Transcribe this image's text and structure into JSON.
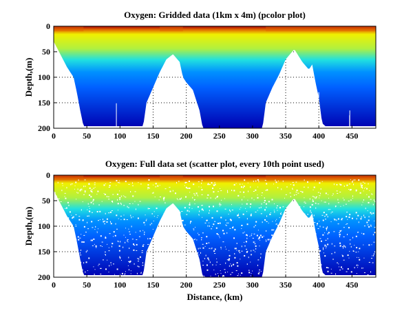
{
  "chart_data": [
    {
      "type": "heatmap",
      "title": "Oxygen: Gridded data (1km x 4m) (pcolor plot)",
      "xlabel": "",
      "ylabel": "Depth,(m)",
      "xlim": [
        0,
        486
      ],
      "ylim": [
        200,
        0
      ],
      "y_reversed": true,
      "xticks": [
        "0",
        "50",
        "100",
        "150",
        "200",
        "250",
        "300",
        "350",
        "400",
        "450"
      ],
      "yticks": [
        "0",
        "50",
        "100",
        "150",
        "200"
      ],
      "grid": true,
      "colormap": "jet",
      "data_bottom_profile": {
        "distance_km": [
          0,
          10,
          20,
          30,
          35,
          40,
          45,
          135,
          140,
          150,
          160,
          170,
          180,
          190,
          195,
          200,
          210,
          220,
          225,
          315,
          320,
          330,
          340,
          350,
          363,
          375,
          385,
          390,
          395,
          400,
          405,
          410,
          486
        ],
        "max_depth_m": [
          30,
          55,
          80,
          100,
          130,
          165,
          196,
          196,
          150,
          120,
          90,
          65,
          55,
          70,
          100,
          110,
          125,
          165,
          200,
          200,
          150,
          120,
          95,
          65,
          45,
          70,
          85,
          75,
          110,
          140,
          190,
          196,
          196
        ]
      },
      "surface_high_oxygen_zones_km": [
        [
          0,
          45
        ],
        [
          160,
          195
        ],
        [
          320,
          486
        ]
      ]
    },
    {
      "type": "scatter",
      "title": "Oxygen: Full data set (scatter plot, every 10th point used)",
      "xlabel": "Distance, (km)",
      "ylabel": "Depth,(m)",
      "xlim": [
        0,
        486
      ],
      "ylim": [
        200,
        0
      ],
      "y_reversed": true,
      "xticks": [
        "0",
        "50",
        "100",
        "150",
        "200",
        "250",
        "300",
        "350",
        "400",
        "450"
      ],
      "yticks": [
        "0",
        "50",
        "100",
        "150",
        "200"
      ],
      "grid": true,
      "colormap": "jet"
    }
  ],
  "colors": {
    "deep": "#0000b0",
    "mid": "#0060ff",
    "cyan": "#20e0e0",
    "yellow": "#f0f000",
    "surface": "#e06000",
    "max": "#a00000"
  }
}
